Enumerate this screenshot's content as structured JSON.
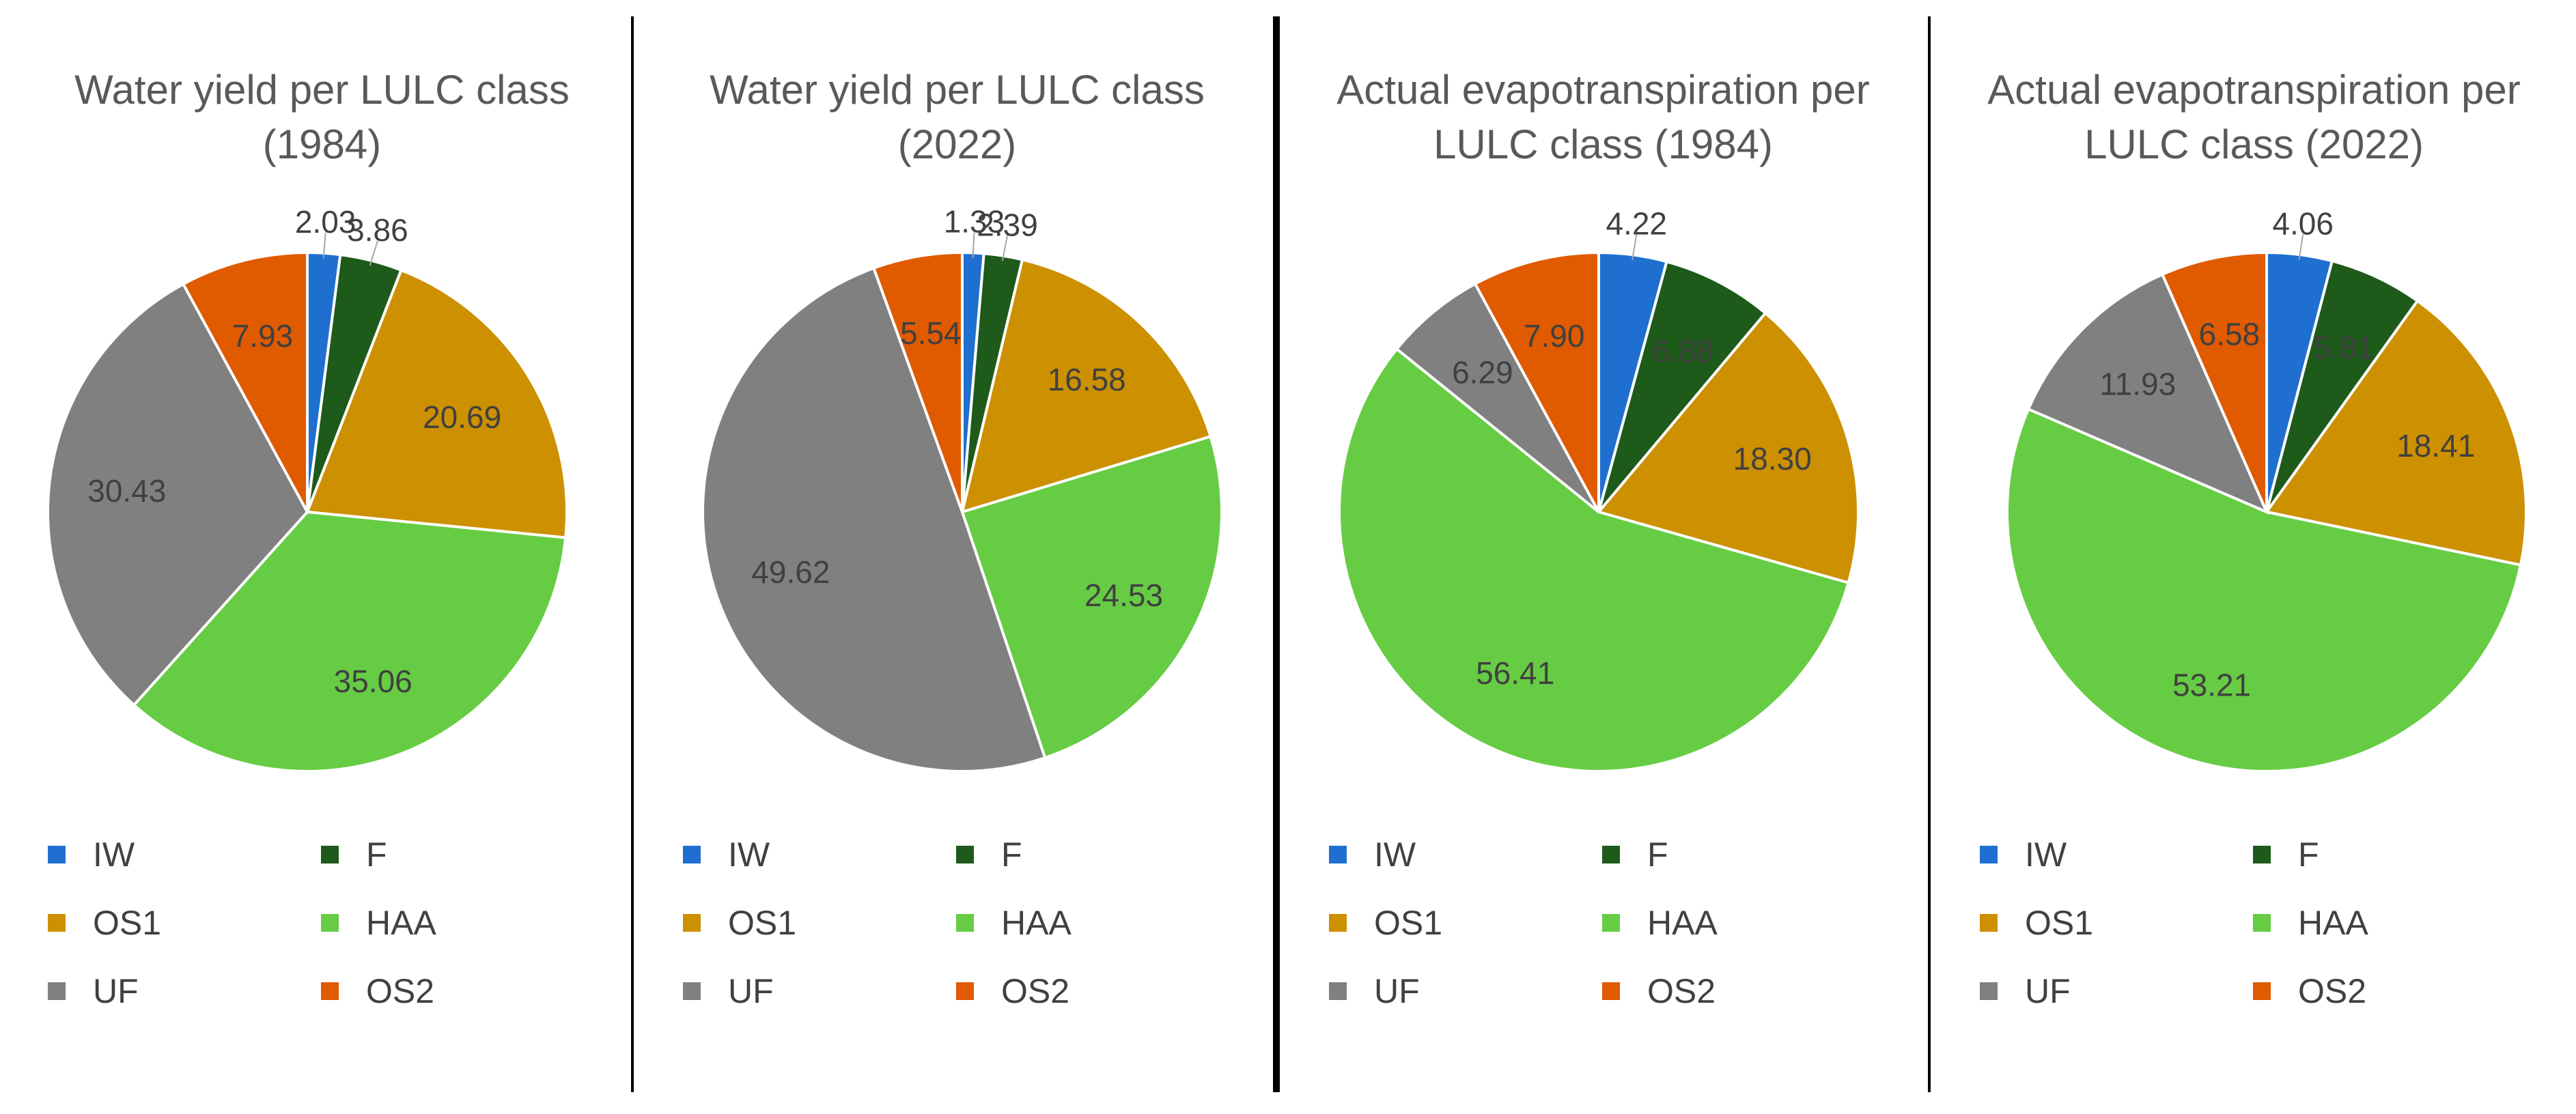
{
  "legend": [
    {
      "key": "IW",
      "label": "IW",
      "color": "#1f6fd0"
    },
    {
      "key": "F",
      "label": "F",
      "color": "#1e5a1a"
    },
    {
      "key": "OS1",
      "label": "OS1",
      "color": "#cc9000"
    },
    {
      "key": "HAA",
      "label": "HAA",
      "color": "#66cc44"
    },
    {
      "key": "UF",
      "label": "UF",
      "color": "#808080"
    },
    {
      "key": "OS2",
      "label": "OS2",
      "color": "#e05a00"
    }
  ],
  "chart_data": [
    {
      "type": "pie",
      "title_lines": [
        "Water yield per LULC class",
        "(1984)"
      ],
      "categories": [
        "IW",
        "F",
        "OS1",
        "HAA",
        "UF",
        "OS2"
      ],
      "values": [
        2.03,
        3.86,
        20.69,
        35.06,
        30.43,
        7.93
      ],
      "labels": [
        "2.03",
        "3.86",
        "20.69",
        "35.06",
        "30.43",
        "7.93"
      ],
      "legend_position": "bottom"
    },
    {
      "type": "pie",
      "title_lines": [
        "Water yield per LULC class",
        "(2022)"
      ],
      "categories": [
        "IW",
        "F",
        "OS1",
        "HAA",
        "UF",
        "OS2"
      ],
      "values": [
        1.33,
        2.39,
        16.58,
        24.53,
        49.62,
        5.54
      ],
      "labels": [
        "1.33",
        "2.39",
        "16.58",
        "24.53",
        "49.62",
        "5.54"
      ],
      "legend_position": "bottom"
    },
    {
      "type": "pie",
      "title_lines": [
        "Actual evapotranspiration per",
        "LULC class (1984)"
      ],
      "categories": [
        "IW",
        "F",
        "OS1",
        "HAA",
        "UF",
        "OS2"
      ],
      "values": [
        4.22,
        6.88,
        18.3,
        56.41,
        6.29,
        7.9
      ],
      "labels": [
        "4.22",
        "6.88",
        "18.30",
        "56.41",
        "6.29",
        "7.90"
      ],
      "legend_position": "bottom"
    },
    {
      "type": "pie",
      "title_lines": [
        "Actual evapotranspiration per",
        "LULC class (2022)"
      ],
      "categories": [
        "IW",
        "F",
        "OS1",
        "HAA",
        "UF",
        "OS2"
      ],
      "values": [
        4.06,
        5.81,
        18.41,
        53.21,
        11.93,
        6.58
      ],
      "labels": [
        "4.06",
        "5.81",
        "18.41",
        "53.21",
        "11.93",
        "6.58"
      ],
      "legend_position": "bottom"
    }
  ]
}
